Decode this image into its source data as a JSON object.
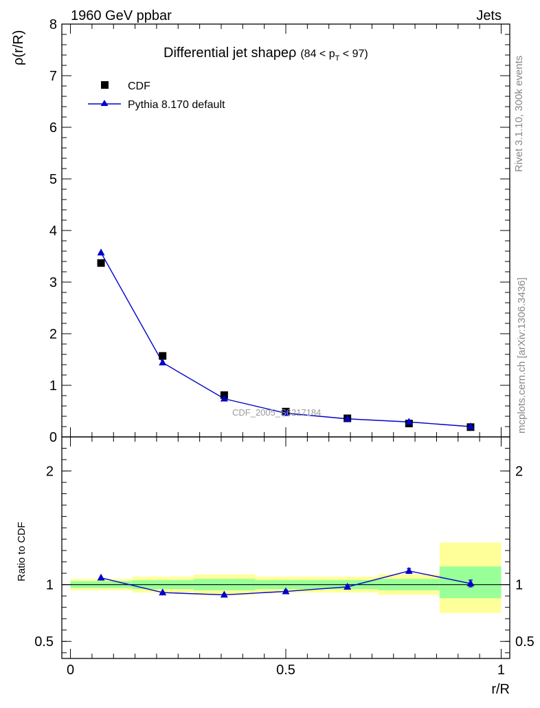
{
  "header": {
    "left": "1960 GeV ppbar",
    "right": "Jets"
  },
  "side_labels": {
    "rivet": "Rivet 3.1.10,  300k events",
    "mcplots": "mcplots.cern.ch [arXiv:1306.3436]"
  },
  "colors": {
    "data": "#000000",
    "mc": "#0000cc",
    "band_outer": "#ffff99",
    "band_inner": "#99ff99"
  },
  "chart_data": [
    {
      "type": "scatter",
      "title": "Differential jet shapeρ",
      "title_suffix": "(84 < p",
      "title_sub": "T",
      "title_end": " < 97)",
      "ylabel": "ρ(r/R)",
      "xlim": [
        -0.02,
        1.02
      ],
      "ylim": [
        0,
        8
      ],
      "yticks": [
        0,
        1,
        2,
        3,
        4,
        5,
        6,
        7,
        8
      ],
      "watermark": "CDF_2005_S6217184",
      "legend_position": "top-left",
      "series": [
        {
          "name": "CDF",
          "marker": "square",
          "x": [
            0.071,
            0.214,
            0.357,
            0.5,
            0.643,
            0.786,
            0.929
          ],
          "y": [
            3.37,
            1.57,
            0.81,
            0.49,
            0.36,
            0.26,
            0.19
          ]
        },
        {
          "name": "Pythia 8.170 default",
          "marker": "triangle",
          "x": [
            0.071,
            0.214,
            0.357,
            0.5,
            0.643,
            0.786,
            0.929
          ],
          "y": [
            3.57,
            1.44,
            0.74,
            0.46,
            0.35,
            0.29,
            0.2
          ]
        }
      ]
    },
    {
      "type": "line",
      "ylabel": "Ratio to CDF",
      "xlabel": "r/R",
      "xlim": [
        -0.02,
        1.02
      ],
      "ylim": [
        0.35,
        2.3
      ],
      "yticks": [
        0.5,
        1,
        2
      ],
      "xticks": [
        0,
        0.5,
        1
      ],
      "xtick_labels": [
        "0",
        "0.5",
        "1"
      ],
      "ytick_labels": [
        "0.5",
        "1",
        "2"
      ],
      "bands": [
        {
          "x0": 0.0,
          "x1": 0.143,
          "outer": [
            0.95,
            1.05
          ],
          "inner": [
            0.97,
            1.03
          ]
        },
        {
          "x0": 0.143,
          "x1": 0.286,
          "outer": [
            0.93,
            1.07
          ],
          "inner": [
            0.96,
            1.04
          ]
        },
        {
          "x0": 0.286,
          "x1": 0.429,
          "outer": [
            0.91,
            1.09
          ],
          "inner": [
            0.95,
            1.05
          ]
        },
        {
          "x0": 0.429,
          "x1": 0.571,
          "outer": [
            0.93,
            1.07
          ],
          "inner": [
            0.96,
            1.04
          ]
        },
        {
          "x0": 0.571,
          "x1": 0.714,
          "outer": [
            0.93,
            1.07
          ],
          "inner": [
            0.96,
            1.04
          ]
        },
        {
          "x0": 0.714,
          "x1": 0.857,
          "outer": [
            0.91,
            1.09
          ],
          "inner": [
            0.95,
            1.05
          ]
        },
        {
          "x0": 0.857,
          "x1": 1.0,
          "outer": [
            0.75,
            1.37
          ],
          "inner": [
            0.88,
            1.16
          ]
        }
      ],
      "series": [
        {
          "name": "Pythia 8.170 default",
          "x": [
            0.071,
            0.214,
            0.357,
            0.5,
            0.643,
            0.786,
            0.929
          ],
          "y": [
            1.06,
            0.93,
            0.91,
            0.94,
            0.98,
            1.12,
            1.01
          ],
          "err": [
            0.0,
            0.005,
            0.008,
            0.012,
            0.015,
            0.022,
            0.03
          ]
        }
      ]
    }
  ]
}
